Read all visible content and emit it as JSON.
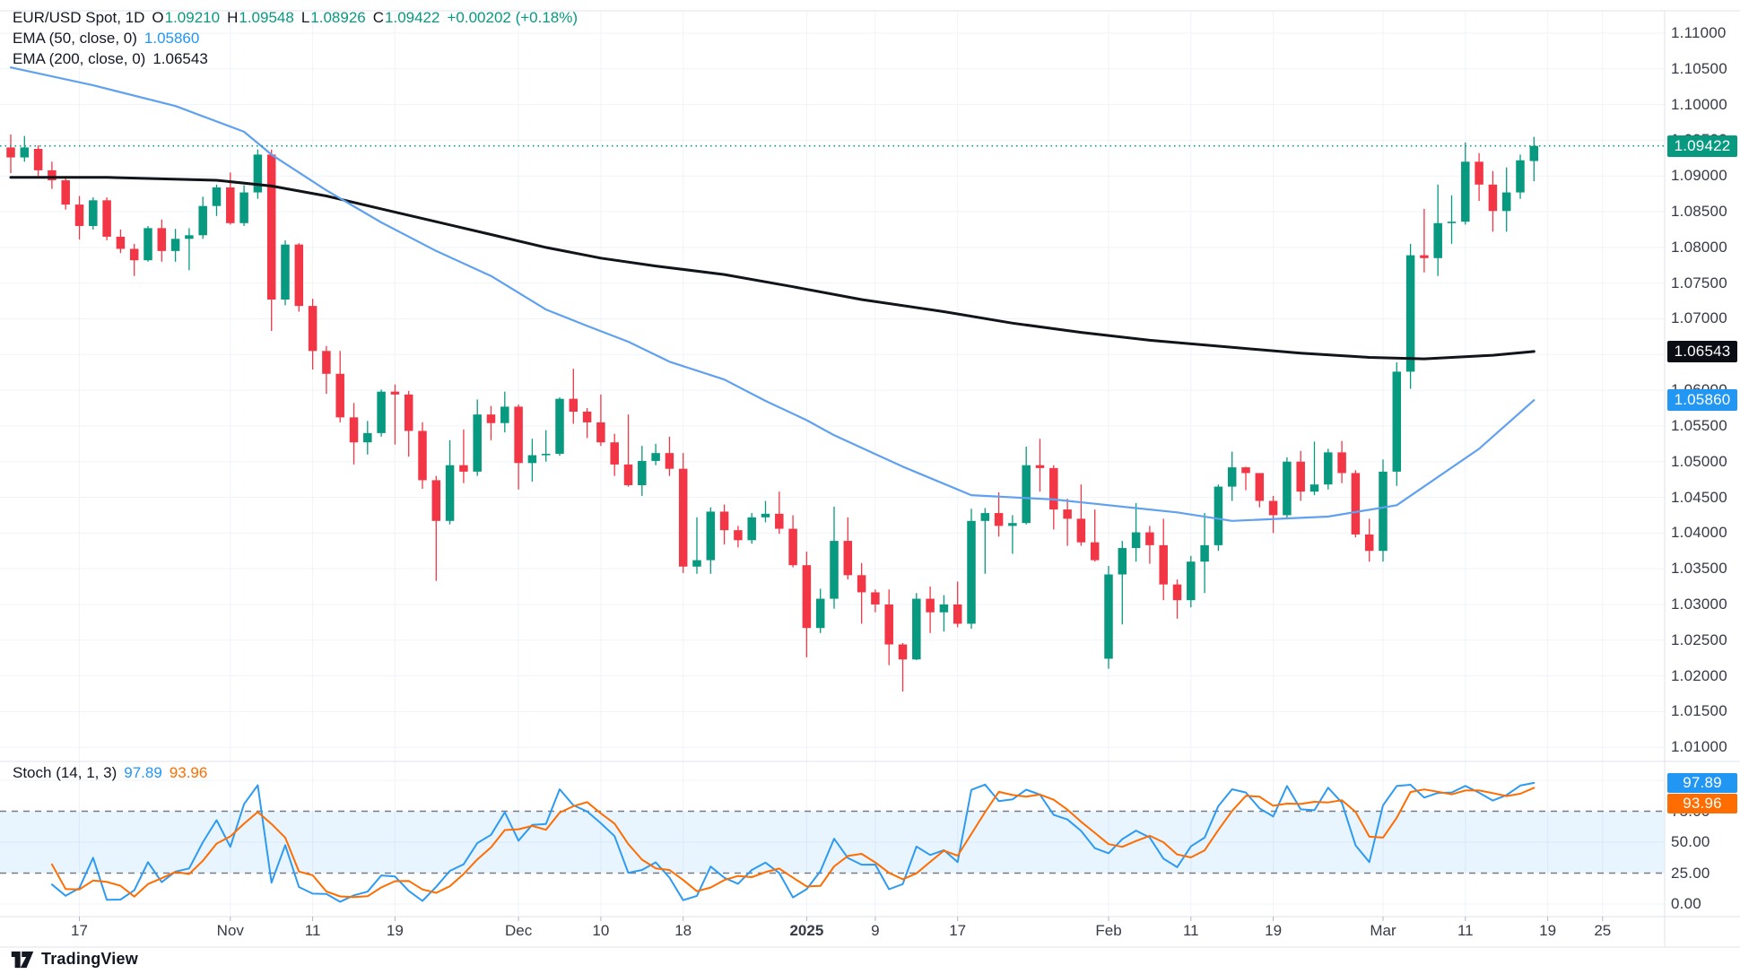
{
  "legend": {
    "title": "EUR/USD Spot, 1D",
    "ohlc": [
      {
        "label": "O",
        "value": "1.09210"
      },
      {
        "label": "H",
        "value": "1.09548"
      },
      {
        "label": "L",
        "value": "1.08926"
      },
      {
        "label": "C",
        "value": "1.09422"
      }
    ],
    "change": "+0.00202 (+0.18%)",
    "ema50_label": "EMA (50, close, 0)",
    "ema50_value": "1.05860",
    "ema200_label": "EMA (200, close, 0)",
    "ema200_value": "1.06543",
    "stoch_label": "Stoch (14, 1, 3)",
    "stoch_k_value": "97.89",
    "stoch_d_value": "93.96"
  },
  "watermark": "TradingView",
  "colors": {
    "up": "#089981",
    "down": "#F23645",
    "ema50_line": "#5FA1EF",
    "ema50_accent": "#2196F3",
    "ema200_line": "#111418",
    "stoch_k": "#2E9BF0",
    "stoch_d": "#FF6D00",
    "current_price": "#089981",
    "grid": "#F0F3FA",
    "separator": "#E0E3EB",
    "dashed_band": "#787B86",
    "band_fill": "rgba(33,150,243,0.10)",
    "axis_text": "#363A45",
    "badge_black": "#0A0E14"
  },
  "price_axis_badges": [
    {
      "text": "1.09422",
      "price": 1.09422,
      "color": "#089981"
    },
    {
      "text": "1.06543",
      "price": 1.06543,
      "color": "#0A0E14"
    },
    {
      "text": "1.05860",
      "price": 1.0586,
      "color": "#2196F3"
    }
  ],
  "stoch_axis_badges": [
    {
      "text": "97.89",
      "value": 97.89,
      "color": "#2196F3"
    },
    {
      "text": "93.96",
      "value": 93.96,
      "color": "#FF6D00"
    }
  ],
  "chart_data": {
    "type": "candlestick",
    "title": "EUR/USD Spot, 1D",
    "panels": [
      "price with EMA(50) and EMA(200)",
      "Stochastic (14,1,3)"
    ],
    "ylim_price_axis": [
      1.01,
      1.11
    ],
    "price_ticks": [
      1.11,
      1.105,
      1.1,
      1.095,
      1.09,
      1.085,
      1.08,
      1.075,
      1.07,
      1.065,
      1.06,
      1.055,
      1.05,
      1.045,
      1.04,
      1.035,
      1.03,
      1.025,
      1.02,
      1.015,
      1.01
    ],
    "current_price": 1.09422,
    "ema50_last": 1.0586,
    "ema200_last": 1.06543,
    "time_labels": [
      {
        "i": 5,
        "text": "17"
      },
      {
        "i": 16,
        "text": "Nov"
      },
      {
        "i": 22,
        "text": "11"
      },
      {
        "i": 28,
        "text": "19"
      },
      {
        "i": 37,
        "text": "Dec"
      },
      {
        "i": 43,
        "text": "10"
      },
      {
        "i": 49,
        "text": "18"
      },
      {
        "i": 58,
        "text": "2025",
        "bold": true
      },
      {
        "i": 63,
        "text": "9"
      },
      {
        "i": 69,
        "text": "17"
      },
      {
        "i": 80,
        "text": "Feb"
      },
      {
        "i": 86,
        "text": "11"
      },
      {
        "i": 92,
        "text": "19"
      },
      {
        "i": 100,
        "text": "Mar"
      },
      {
        "i": 106,
        "text": "11"
      },
      {
        "i": 112,
        "text": "19"
      },
      {
        "i": 116,
        "text": "25"
      }
    ],
    "candles": [
      [
        1.094,
        1.0958,
        1.0904,
        1.0926
      ],
      [
        1.0926,
        1.0956,
        1.092,
        1.094
      ],
      [
        1.0938,
        1.0943,
        1.09,
        1.0908
      ],
      [
        1.0908,
        1.092,
        1.0882,
        1.0894
      ],
      [
        1.0894,
        1.09,
        1.0853,
        1.086
      ],
      [
        1.086,
        1.0872,
        1.0811,
        1.083
      ],
      [
        1.083,
        1.087,
        1.0825,
        1.0866
      ],
      [
        1.0866,
        1.087,
        1.081,
        1.0815
      ],
      [
        1.0815,
        1.0825,
        1.0792,
        1.0798
      ],
      [
        1.0798,
        1.0805,
        1.076,
        1.0782
      ],
      [
        1.0782,
        1.083,
        1.078,
        1.0827
      ],
      [
        1.0827,
        1.0839,
        1.078,
        1.0795
      ],
      [
        1.0795,
        1.0826,
        1.078,
        1.0812
      ],
      [
        1.0812,
        1.0827,
        1.0768,
        1.0817
      ],
      [
        1.0817,
        1.0871,
        1.0812,
        1.0858
      ],
      [
        1.0858,
        1.0888,
        1.0844,
        1.0884
      ],
      [
        1.0884,
        1.0905,
        1.0832,
        1.0834
      ],
      [
        1.0834,
        1.0887,
        1.083,
        1.0877
      ],
      [
        1.0877,
        1.0937,
        1.0868,
        1.093
      ],
      [
        1.093,
        1.0937,
        1.0683,
        1.0727
      ],
      [
        1.0727,
        1.081,
        1.0719,
        1.0804
      ],
      [
        1.0804,
        1.0806,
        1.071,
        1.0718
      ],
      [
        1.0718,
        1.0728,
        1.0629,
        1.0655
      ],
      [
        1.0655,
        1.0662,
        1.0595,
        1.0623
      ],
      [
        1.0623,
        1.0655,
        1.0555,
        1.0562
      ],
      [
        1.0562,
        1.0582,
        1.0496,
        1.0527
      ],
      [
        1.0527,
        1.0557,
        1.051,
        1.054
      ],
      [
        1.054,
        1.0601,
        1.0535,
        1.0598
      ],
      [
        1.0598,
        1.0608,
        1.0524,
        1.0594
      ],
      [
        1.0594,
        1.0599,
        1.0507,
        1.0543
      ],
      [
        1.0543,
        1.0555,
        1.0462,
        1.0474
      ],
      [
        1.0474,
        1.048,
        1.0333,
        1.0417
      ],
      [
        1.0417,
        1.053,
        1.0412,
        1.0495
      ],
      [
        1.0495,
        1.0545,
        1.047,
        1.0486
      ],
      [
        1.0486,
        1.0587,
        1.048,
        1.0566
      ],
      [
        1.0566,
        1.0578,
        1.053,
        1.0554
      ],
      [
        1.0554,
        1.0598,
        1.0541,
        1.0577
      ],
      [
        1.0577,
        1.058,
        1.0461,
        1.0498
      ],
      [
        1.0498,
        1.0532,
        1.0472,
        1.0509
      ],
      [
        1.0509,
        1.0544,
        1.05,
        1.0511
      ],
      [
        1.0511,
        1.059,
        1.0508,
        1.0588
      ],
      [
        1.0588,
        1.063,
        1.0553,
        1.057
      ],
      [
        1.057,
        1.0575,
        1.0533,
        1.0555
      ],
      [
        1.0555,
        1.0594,
        1.0522,
        1.0527
      ],
      [
        1.0527,
        1.0539,
        1.048,
        1.0496
      ],
      [
        1.0496,
        1.0566,
        1.0465,
        1.0467
      ],
      [
        1.0467,
        1.0522,
        1.0452,
        1.0501
      ],
      [
        1.0501,
        1.0525,
        1.0495,
        1.0512
      ],
      [
        1.0512,
        1.0535,
        1.048,
        1.049
      ],
      [
        1.049,
        1.0512,
        1.0344,
        1.0353
      ],
      [
        1.0353,
        1.0422,
        1.0343,
        1.0362
      ],
      [
        1.0362,
        1.0436,
        1.0343,
        1.043
      ],
      [
        1.043,
        1.044,
        1.0384,
        1.0404
      ],
      [
        1.0404,
        1.041,
        1.038,
        1.039
      ],
      [
        1.039,
        1.0428,
        1.0385,
        1.0422
      ],
      [
        1.0422,
        1.0445,
        1.0415,
        1.0427
      ],
      [
        1.0427,
        1.0458,
        1.0399,
        1.0406
      ],
      [
        1.0406,
        1.0425,
        1.0352,
        1.0355
      ],
      [
        1.0355,
        1.0374,
        1.0226,
        1.0267
      ],
      [
        1.0267,
        1.0322,
        1.026,
        1.0308
      ],
      [
        1.0308,
        1.0437,
        1.0294,
        1.0389
      ],
      [
        1.0389,
        1.0422,
        1.0335,
        1.0341
      ],
      [
        1.0341,
        1.0358,
        1.0273,
        1.0317
      ],
      [
        1.0317,
        1.0321,
        1.0289,
        1.03
      ],
      [
        1.03,
        1.0321,
        1.0215,
        1.0244
      ],
      [
        1.0244,
        1.0246,
        1.0178,
        1.0223
      ],
      [
        1.0223,
        1.0316,
        1.0222,
        1.0308
      ],
      [
        1.0308,
        1.0325,
        1.026,
        1.0289
      ],
      [
        1.0289,
        1.0313,
        1.0262,
        1.03
      ],
      [
        1.03,
        1.0332,
        1.0268,
        1.0273
      ],
      [
        1.0273,
        1.0434,
        1.0266,
        1.0417
      ],
      [
        1.0417,
        1.0435,
        1.0343,
        1.0428
      ],
      [
        1.0428,
        1.0457,
        1.0395,
        1.041
      ],
      [
        1.041,
        1.0425,
        1.0371,
        1.0414
      ],
      [
        1.0414,
        1.0521,
        1.0412,
        1.0495
      ],
      [
        1.0495,
        1.0532,
        1.0458,
        1.0491
      ],
      [
        1.0491,
        1.0495,
        1.0405,
        1.0433
      ],
      [
        1.0433,
        1.0448,
        1.0382,
        1.042
      ],
      [
        1.042,
        1.0468,
        1.0382,
        1.0387
      ],
      [
        1.0387,
        1.0433,
        1.036,
        1.0362
      ],
      [
        1.0224,
        1.0354,
        1.021,
        1.0342
      ],
      [
        1.0342,
        1.0389,
        1.0272,
        1.0379
      ],
      [
        1.0379,
        1.0442,
        1.036,
        1.0401
      ],
      [
        1.0401,
        1.041,
        1.0357,
        1.0383
      ],
      [
        1.0383,
        1.042,
        1.0306,
        1.0328
      ],
      [
        1.0328,
        1.0335,
        1.028,
        1.0306
      ],
      [
        1.0306,
        1.0368,
        1.0296,
        1.036
      ],
      [
        1.036,
        1.0428,
        1.0316,
        1.0383
      ],
      [
        1.0383,
        1.0468,
        1.0375,
        1.0465
      ],
      [
        1.0465,
        1.0514,
        1.0445,
        1.0492
      ],
      [
        1.0492,
        1.0493,
        1.046,
        1.0484
      ],
      [
        1.0484,
        1.0484,
        1.0436,
        1.0445
      ],
      [
        1.0445,
        1.0452,
        1.04,
        1.0425
      ],
      [
        1.0425,
        1.0506,
        1.042,
        1.05
      ],
      [
        1.05,
        1.0515,
        1.0445,
        1.0458
      ],
      [
        1.0458,
        1.0528,
        1.0453,
        1.0468
      ],
      [
        1.0468,
        1.0518,
        1.0461,
        1.0513
      ],
      [
        1.0513,
        1.0529,
        1.047,
        1.0484
      ],
      [
        1.0484,
        1.0488,
        1.0394,
        1.0398
      ],
      [
        1.0398,
        1.042,
        1.036,
        1.0375
      ],
      [
        1.0375,
        1.0503,
        1.036,
        1.0486
      ],
      [
        1.0486,
        1.0639,
        1.0466,
        1.0626
      ],
      [
        1.0626,
        1.0805,
        1.0602,
        1.0789
      ],
      [
        1.0789,
        1.0854,
        1.0765,
        1.0785
      ],
      [
        1.0785,
        1.0888,
        1.076,
        1.0834
      ],
      [
        1.0834,
        1.0873,
        1.0805,
        1.0836
      ],
      [
        1.0836,
        1.0947,
        1.0832,
        1.092
      ],
      [
        1.092,
        1.0932,
        1.0865,
        1.0888
      ],
      [
        1.0888,
        1.0907,
        1.0822,
        1.0851
      ],
      [
        1.0851,
        1.0912,
        1.0822,
        1.0877
      ],
      [
        1.0877,
        1.093,
        1.0868,
        1.0922
      ],
      [
        1.0921,
        1.09548,
        1.08926,
        1.09422
      ]
    ],
    "ema50_points": [
      [
        0,
        1.1052
      ],
      [
        6,
        1.1027
      ],
      [
        12,
        1.0998
      ],
      [
        17,
        1.0962
      ],
      [
        19,
        1.093
      ],
      [
        23,
        1.088
      ],
      [
        27,
        1.0835
      ],
      [
        31,
        1.0795
      ],
      [
        35,
        1.076
      ],
      [
        39,
        1.0713
      ],
      [
        42,
        1.069
      ],
      [
        45,
        1.0668
      ],
      [
        48,
        1.064
      ],
      [
        52,
        1.0615
      ],
      [
        55,
        1.0585
      ],
      [
        58,
        1.0558
      ],
      [
        60,
        1.0537
      ],
      [
        65,
        1.0493
      ],
      [
        70,
        1.0453
      ],
      [
        76,
        1.0447
      ],
      [
        79,
        1.0441
      ],
      [
        85,
        1.0429
      ],
      [
        89,
        1.0417
      ],
      [
        96,
        1.0423
      ],
      [
        101,
        1.0439
      ],
      [
        107,
        1.0518
      ],
      [
        111,
        1.0586
      ]
    ],
    "ema200_points": [
      [
        0,
        1.0898
      ],
      [
        7,
        1.0898
      ],
      [
        15,
        1.0894
      ],
      [
        19,
        1.0886
      ],
      [
        23,
        1.0872
      ],
      [
        27,
        1.0854
      ],
      [
        31,
        1.0836
      ],
      [
        35,
        1.0818
      ],
      [
        39,
        1.08
      ],
      [
        43,
        1.0785
      ],
      [
        47,
        1.0774
      ],
      [
        52,
        1.0762
      ],
      [
        57,
        1.0745
      ],
      [
        62,
        1.0727
      ],
      [
        68,
        1.071
      ],
      [
        73,
        1.0694
      ],
      [
        78,
        1.0681
      ],
      [
        83,
        1.067
      ],
      [
        89,
        1.066
      ],
      [
        94,
        1.0652
      ],
      [
        99,
        1.0646
      ],
      [
        103,
        1.0644
      ],
      [
        108,
        1.0649
      ],
      [
        111,
        1.06543
      ]
    ],
    "stoch": {
      "k_period": 14,
      "smoothing": 1,
      "d_period": 3,
      "k_last": 97.89,
      "d_last": 93.96,
      "upper_band": 75,
      "lower_band": 25,
      "ticks": [
        {
          "v": 75,
          "text": "75.00"
        },
        {
          "v": 50,
          "text": "50.00"
        },
        {
          "v": 25,
          "text": "25.00"
        },
        {
          "v": 0,
          "text": "0.00"
        }
      ],
      "grid_values": [
        100,
        50,
        0
      ],
      "draw_from_index": 3
    }
  }
}
